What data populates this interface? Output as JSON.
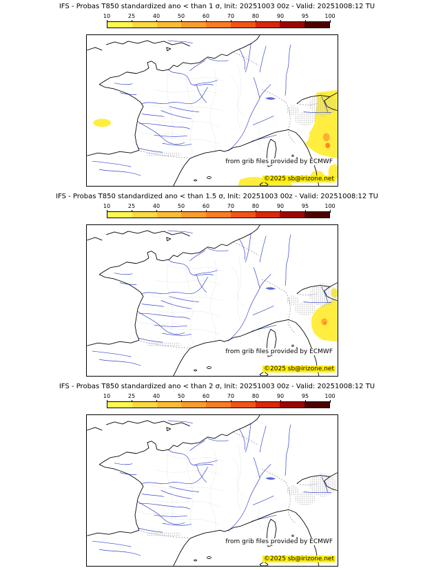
{
  "colorbar": {
    "tick_labels": [
      "10",
      "25",
      "40",
      "50",
      "60",
      "70",
      "80",
      "90",
      "95",
      "100"
    ],
    "segment_colors": [
      "#fdf851",
      "#fcd944",
      "#fbbb38",
      "#fa9c2d",
      "#f97d22",
      "#ef5517",
      "#d7280c",
      "#9c0603",
      "#4f0000"
    ]
  },
  "panels": [
    {
      "title": "IFS - Probas T850  standardized ano < than 1 σ, Init: 20251003 00z - Valid: 20251008:12 TU"
    },
    {
      "title": "IFS - Probas T850  standardized ano < than 1.5 σ, Init: 20251003 00z - Valid: 20251008:12 TU"
    },
    {
      "title": "IFS - Probas T850  standardized ano < than 2 σ, Init: 20251003 00z - Valid: 20251008:12 TU"
    }
  ],
  "attribution": {
    "source_text": "from grib files provided by ECMWF",
    "copyright_text": "©2025 sb@irizone.net"
  },
  "colors": {
    "prob_low_yellow": "#ffee3f",
    "prob_mid_orange": "#ffad33",
    "prob_high_orange": "#ff8c1a",
    "river_blue": "#3344cc",
    "highlight_yellow": "#ffee00"
  }
}
